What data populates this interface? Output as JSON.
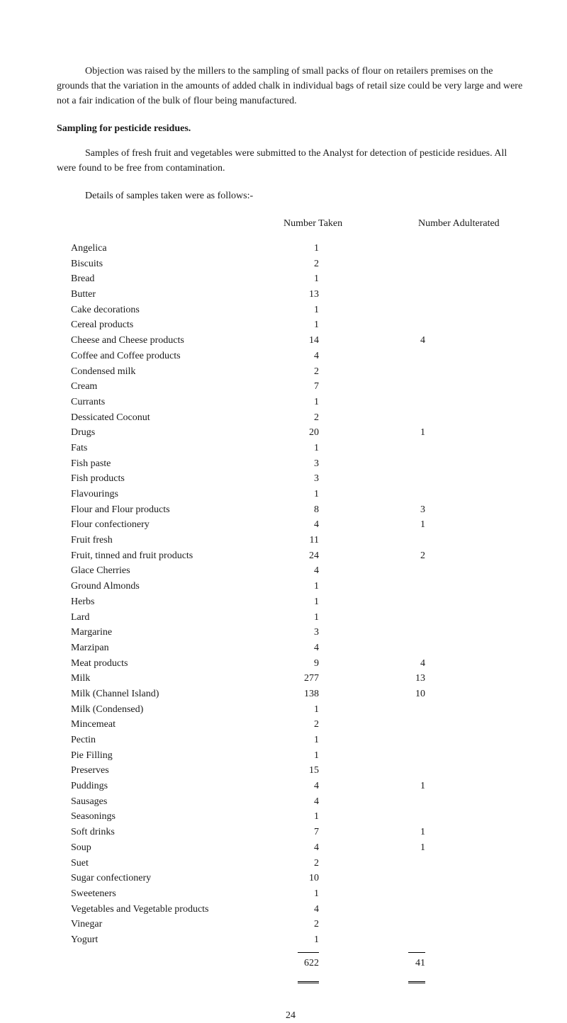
{
  "paragraphs": {
    "p1": "Objection was raised by the millers to the sampling of small packs of flour on retailers premises on the grounds that the variation in the amounts of added chalk in individual bags of retail size could be very large and were not a fair indication of the bulk of flour being manufactured.",
    "heading": "Sampling for pesticide residues.",
    "p2": "Samples of fresh fruit and vegetables were submitted to the Analyst for detection of pesticide residues. All were found to be free from contamination.",
    "p3": "Details of samples taken were as follows:-"
  },
  "table": {
    "header_taken": "Number Taken",
    "header_adult": "Number Adulterated",
    "rows": [
      {
        "label": "Angelica",
        "taken": "1",
        "adult": ""
      },
      {
        "label": "Biscuits",
        "taken": "2",
        "adult": ""
      },
      {
        "label": "Bread",
        "taken": "1",
        "adult": ""
      },
      {
        "label": "Butter",
        "taken": "13",
        "adult": ""
      },
      {
        "label": "Cake decorations",
        "taken": "1",
        "adult": ""
      },
      {
        "label": "Cereal products",
        "taken": "1",
        "adult": ""
      },
      {
        "label": "Cheese and Cheese products",
        "taken": "14",
        "adult": "4"
      },
      {
        "label": "Coffee and Coffee products",
        "taken": "4",
        "adult": ""
      },
      {
        "label": "Condensed milk",
        "taken": "2",
        "adult": ""
      },
      {
        "label": "Cream",
        "taken": "7",
        "adult": ""
      },
      {
        "label": "Currants",
        "taken": "1",
        "adult": ""
      },
      {
        "label": "Dessicated Coconut",
        "taken": "2",
        "adult": ""
      },
      {
        "label": "Drugs",
        "taken": "20",
        "adult": "1"
      },
      {
        "label": "Fats",
        "taken": "1",
        "adult": ""
      },
      {
        "label": "Fish paste",
        "taken": "3",
        "adult": ""
      },
      {
        "label": "Fish products",
        "taken": "3",
        "adult": ""
      },
      {
        "label": "Flavourings",
        "taken": "1",
        "adult": ""
      },
      {
        "label": "Flour and Flour products",
        "taken": "8",
        "adult": "3"
      },
      {
        "label": "Flour confectionery",
        "taken": "4",
        "adult": "1"
      },
      {
        "label": "Fruit fresh",
        "taken": "11",
        "adult": ""
      },
      {
        "label": "Fruit, tinned and fruit products",
        "taken": "24",
        "adult": "2"
      },
      {
        "label": "Glace Cherries",
        "taken": "4",
        "adult": ""
      },
      {
        "label": "Ground Almonds",
        "taken": "1",
        "adult": ""
      },
      {
        "label": "Herbs",
        "taken": "1",
        "adult": ""
      },
      {
        "label": "Lard",
        "taken": "1",
        "adult": ""
      },
      {
        "label": "Margarine",
        "taken": "3",
        "adult": ""
      },
      {
        "label": "Marzipan",
        "taken": "4",
        "adult": ""
      },
      {
        "label": "Meat products",
        "taken": "9",
        "adult": "4"
      },
      {
        "label": "Milk",
        "taken": "277",
        "adult": "13"
      },
      {
        "label": "Milk (Channel Island)",
        "taken": "138",
        "adult": "10"
      },
      {
        "label": "Milk (Condensed)",
        "taken": "1",
        "adult": ""
      },
      {
        "label": "Mincemeat",
        "taken": "2",
        "adult": ""
      },
      {
        "label": "Pectin",
        "taken": "1",
        "adult": ""
      },
      {
        "label": "Pie Filling",
        "taken": "1",
        "adult": ""
      },
      {
        "label": "Preserves",
        "taken": "15",
        "adult": ""
      },
      {
        "label": "Puddings",
        "taken": "4",
        "adult": "1"
      },
      {
        "label": "Sausages",
        "taken": "4",
        "adult": ""
      },
      {
        "label": "Seasonings",
        "taken": "1",
        "adult": ""
      },
      {
        "label": "Soft drinks",
        "taken": "7",
        "adult": "1"
      },
      {
        "label": "Soup",
        "taken": "4",
        "adult": "1"
      },
      {
        "label": "Suet",
        "taken": "2",
        "adult": ""
      },
      {
        "label": "Sugar confectionery",
        "taken": "10",
        "adult": ""
      },
      {
        "label": "Sweeteners",
        "taken": "1",
        "adult": ""
      },
      {
        "label": "Vegetables and Vegetable products",
        "taken": "4",
        "adult": ""
      },
      {
        "label": "Vinegar",
        "taken": "2",
        "adult": ""
      },
      {
        "label": "Yogurt",
        "taken": "1",
        "adult": ""
      }
    ],
    "total_taken": "622",
    "total_adult": "41"
  },
  "page_number": "24"
}
